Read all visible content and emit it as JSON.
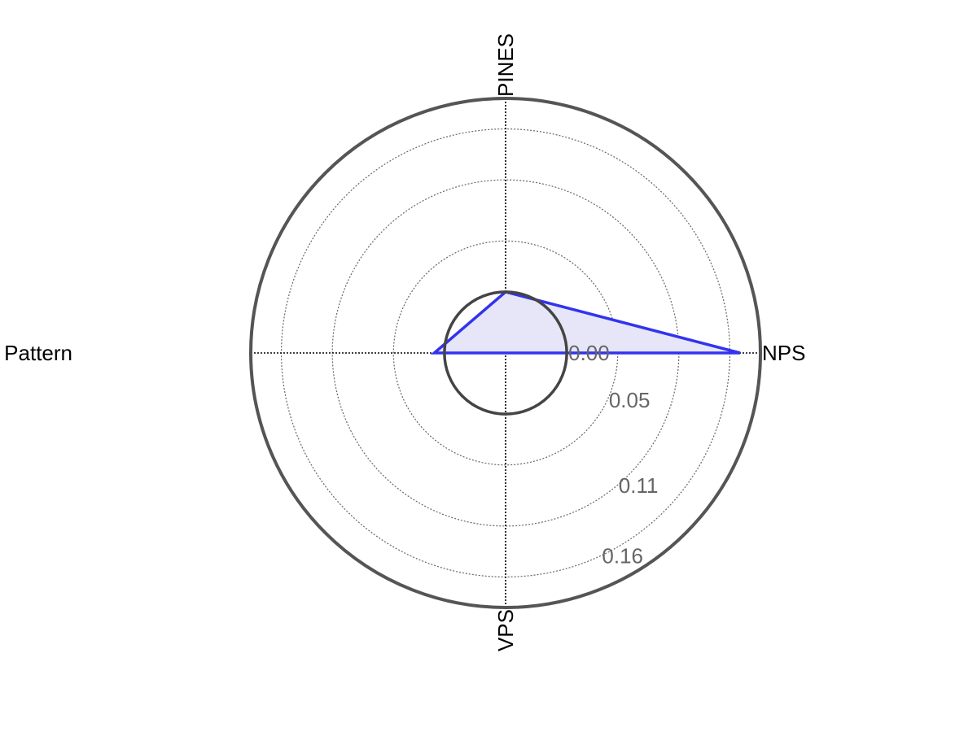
{
  "chart_data": {
    "type": "radar",
    "axes": [
      "NPS",
      "PINES",
      "Pattern",
      "VPS"
    ],
    "range": [
      -0.06,
      0.19
    ],
    "grid": true,
    "ticks": [
      {
        "label": "0.00",
        "value": 0.0
      },
      {
        "label": "0.05",
        "value": 0.05
      },
      {
        "label": "0.11",
        "value": 0.11
      },
      {
        "label": "0.16",
        "value": 0.16
      }
    ],
    "reference_circle_value": 0.0,
    "series": [
      {
        "values": [
          0.17,
          0.0,
          0.01,
          -0.06
        ],
        "color": "#3333ee",
        "fill": "#e6e6f8"
      }
    ],
    "outer_circle_color": "#555555",
    "reference_circle_color": "#444444"
  }
}
